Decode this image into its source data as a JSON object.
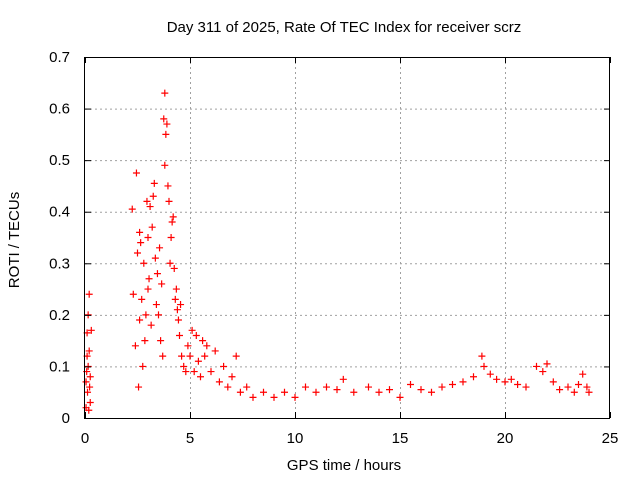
{
  "chart_data": {
    "type": "scatter",
    "title": "Day 311 of 2025, Rate Of TEC Index for receiver scrz",
    "xlabel": "GPS time / hours",
    "ylabel": "ROTI / TECUs",
    "xlim": [
      0,
      25
    ],
    "ylim": [
      0,
      0.7
    ],
    "xticks": [
      "0",
      "5",
      "10",
      "15",
      "20",
      "25"
    ],
    "yticks": [
      "0",
      "0.1",
      "0.2",
      "0.3",
      "0.4",
      "0.5",
      "0.6",
      "0.7"
    ],
    "grid": true,
    "marker": "+",
    "color": "#ff0000",
    "series": [
      {
        "points": [
          [
            0.05,
            0.02
          ],
          [
            0.05,
            0.07
          ],
          [
            0.08,
            0.09
          ],
          [
            0.1,
            0.12
          ],
          [
            0.1,
            0.165
          ],
          [
            0.12,
            0.05
          ],
          [
            0.15,
            0.1
          ],
          [
            0.15,
            0.2
          ],
          [
            0.18,
            0.015
          ],
          [
            0.2,
            0.24
          ],
          [
            0.2,
            0.13
          ],
          [
            0.22,
            0.06
          ],
          [
            0.25,
            0.08
          ],
          [
            0.25,
            0.03
          ],
          [
            0.3,
            0.17
          ],
          [
            2.25,
            0.405
          ],
          [
            2.3,
            0.24
          ],
          [
            2.4,
            0.14
          ],
          [
            2.45,
            0.475
          ],
          [
            2.5,
            0.32
          ],
          [
            2.55,
            0.06
          ],
          [
            2.6,
            0.36
          ],
          [
            2.6,
            0.19
          ],
          [
            2.65,
            0.34
          ],
          [
            2.7,
            0.23
          ],
          [
            2.75,
            0.1
          ],
          [
            2.8,
            0.3
          ],
          [
            2.85,
            0.15
          ],
          [
            2.9,
            0.2
          ],
          [
            2.95,
            0.42
          ],
          [
            3.0,
            0.35
          ],
          [
            3.0,
            0.25
          ],
          [
            3.05,
            0.27
          ],
          [
            3.1,
            0.41
          ],
          [
            3.15,
            0.18
          ],
          [
            3.2,
            0.37
          ],
          [
            3.25,
            0.43
          ],
          [
            3.3,
            0.455
          ],
          [
            3.35,
            0.31
          ],
          [
            3.4,
            0.22
          ],
          [
            3.45,
            0.28
          ],
          [
            3.5,
            0.2
          ],
          [
            3.55,
            0.33
          ],
          [
            3.6,
            0.15
          ],
          [
            3.65,
            0.26
          ],
          [
            3.7,
            0.12
          ],
          [
            3.75,
            0.58
          ],
          [
            3.8,
            0.63
          ],
          [
            3.8,
            0.49
          ],
          [
            3.85,
            0.55
          ],
          [
            3.9,
            0.57
          ],
          [
            3.95,
            0.45
          ],
          [
            4.0,
            0.42
          ],
          [
            4.05,
            0.3
          ],
          [
            4.1,
            0.35
          ],
          [
            4.15,
            0.38
          ],
          [
            4.2,
            0.39
          ],
          [
            4.25,
            0.29
          ],
          [
            4.3,
            0.23
          ],
          [
            4.35,
            0.25
          ],
          [
            4.4,
            0.21
          ],
          [
            4.45,
            0.19
          ],
          [
            4.5,
            0.16
          ],
          [
            4.55,
            0.22
          ],
          [
            4.6,
            0.12
          ],
          [
            4.7,
            0.1
          ],
          [
            4.8,
            0.09
          ],
          [
            4.9,
            0.14
          ],
          [
            5.0,
            0.12
          ],
          [
            5.1,
            0.17
          ],
          [
            5.2,
            0.09
          ],
          [
            5.3,
            0.16
          ],
          [
            5.4,
            0.11
          ],
          [
            5.5,
            0.08
          ],
          [
            5.6,
            0.15
          ],
          [
            5.7,
            0.12
          ],
          [
            5.8,
            0.14
          ],
          [
            6.0,
            0.09
          ],
          [
            6.2,
            0.13
          ],
          [
            6.4,
            0.07
          ],
          [
            6.6,
            0.1
          ],
          [
            6.8,
            0.06
          ],
          [
            7.0,
            0.08
          ],
          [
            7.2,
            0.12
          ],
          [
            7.4,
            0.05
          ],
          [
            7.7,
            0.06
          ],
          [
            8.0,
            0.04
          ],
          [
            8.5,
            0.05
          ],
          [
            9.0,
            0.04
          ],
          [
            9.5,
            0.05
          ],
          [
            10.0,
            0.04
          ],
          [
            10.5,
            0.06
          ],
          [
            11.0,
            0.05
          ],
          [
            11.5,
            0.06
          ],
          [
            12.0,
            0.055
          ],
          [
            12.3,
            0.075
          ],
          [
            12.8,
            0.05
          ],
          [
            13.5,
            0.06
          ],
          [
            14.0,
            0.05
          ],
          [
            14.5,
            0.055
          ],
          [
            15.0,
            0.04
          ],
          [
            15.5,
            0.065
          ],
          [
            16.0,
            0.055
          ],
          [
            16.5,
            0.05
          ],
          [
            17.0,
            0.06
          ],
          [
            17.5,
            0.065
          ],
          [
            18.0,
            0.07
          ],
          [
            18.5,
            0.08
          ],
          [
            18.9,
            0.12
          ],
          [
            19.0,
            0.1
          ],
          [
            19.3,
            0.085
          ],
          [
            19.6,
            0.075
          ],
          [
            20.0,
            0.07
          ],
          [
            20.3,
            0.075
          ],
          [
            20.6,
            0.065
          ],
          [
            21.0,
            0.06
          ],
          [
            21.5,
            0.1
          ],
          [
            21.8,
            0.09
          ],
          [
            22.0,
            0.105
          ],
          [
            22.3,
            0.07
          ],
          [
            22.6,
            0.055
          ],
          [
            23.0,
            0.06
          ],
          [
            23.3,
            0.05
          ],
          [
            23.5,
            0.065
          ],
          [
            23.7,
            0.085
          ],
          [
            23.9,
            0.06
          ],
          [
            24.0,
            0.05
          ]
        ]
      }
    ]
  }
}
